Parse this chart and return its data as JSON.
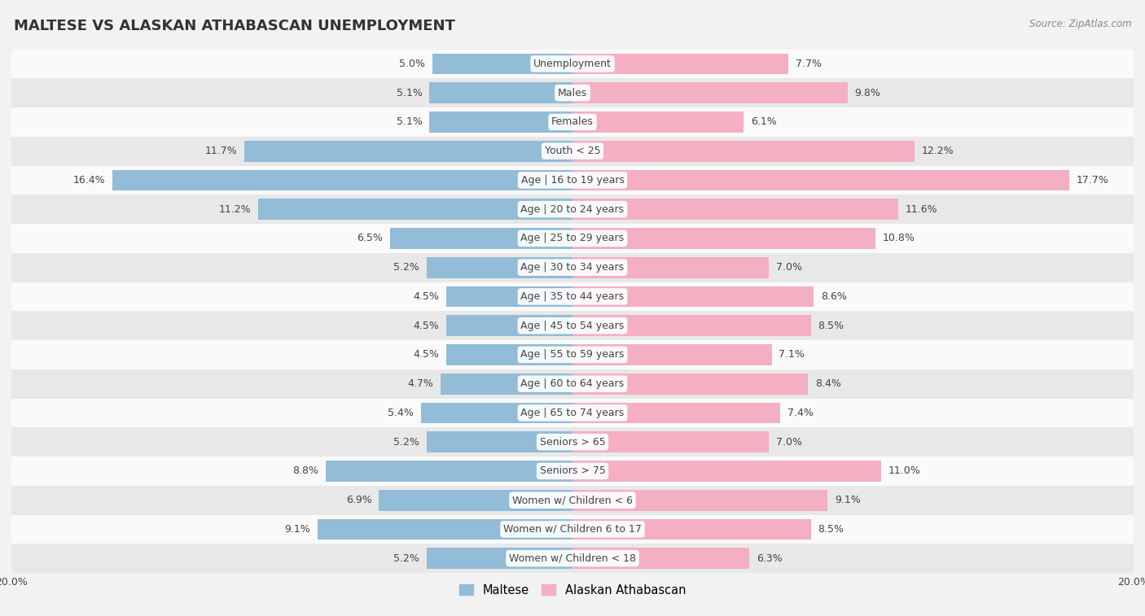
{
  "title": "MALTESE VS ALASKAN ATHABASCAN UNEMPLOYMENT",
  "source": "Source: ZipAtlas.com",
  "categories": [
    "Unemployment",
    "Males",
    "Females",
    "Youth < 25",
    "Age | 16 to 19 years",
    "Age | 20 to 24 years",
    "Age | 25 to 29 years",
    "Age | 30 to 34 years",
    "Age | 35 to 44 years",
    "Age | 45 to 54 years",
    "Age | 55 to 59 years",
    "Age | 60 to 64 years",
    "Age | 65 to 74 years",
    "Seniors > 65",
    "Seniors > 75",
    "Women w/ Children < 6",
    "Women w/ Children 6 to 17",
    "Women w/ Children < 18"
  ],
  "maltese": [
    5.0,
    5.1,
    5.1,
    11.7,
    16.4,
    11.2,
    6.5,
    5.2,
    4.5,
    4.5,
    4.5,
    4.7,
    5.4,
    5.2,
    8.8,
    6.9,
    9.1,
    5.2
  ],
  "alaskan": [
    7.7,
    9.8,
    6.1,
    12.2,
    17.7,
    11.6,
    10.8,
    7.0,
    8.6,
    8.5,
    7.1,
    8.4,
    7.4,
    7.0,
    11.0,
    9.1,
    8.5,
    6.3
  ],
  "maltese_color": "#92bcd8",
  "alaskan_color": "#f4afc2",
  "bg_color": "#f2f2f2",
  "row_bg_light": "#fafafa",
  "row_bg_dark": "#e8e8e8",
  "bar_height": 0.72,
  "xlim": 20.0,
  "label_fontsize": 9.0,
  "category_fontsize": 9.0,
  "title_fontsize": 13,
  "source_fontsize": 8.5,
  "legend_fontsize": 10.5,
  "tick_fontsize": 9.0
}
